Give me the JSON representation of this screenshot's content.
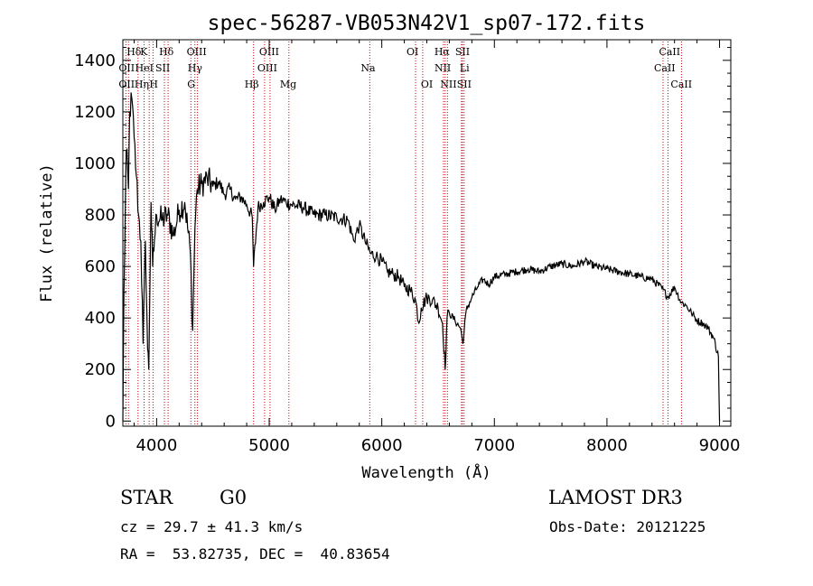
{
  "chart_data": {
    "type": "line",
    "title": "spec-56287-VB053N42V1_sp07-172.fits",
    "xlabel": "Wavelength (Å)",
    "ylabel": "Flux (relative)",
    "xlim": [
      3700,
      9100
    ],
    "ylim": [
      -20,
      1480
    ],
    "x_ticks": [
      4000,
      5000,
      6000,
      7000,
      8000,
      9000
    ],
    "y_ticks": [
      0,
      200,
      400,
      600,
      800,
      1000,
      1200,
      1400
    ],
    "grid": false,
    "series": [
      {
        "name": "flux",
        "x": [
          3700,
          3710,
          3730,
          3750,
          3760,
          3780,
          3800,
          3820,
          3840,
          3860,
          3880,
          3900,
          3920,
          3930,
          3950,
          3965,
          3980,
          4000,
          4050,
          4100,
          4150,
          4200,
          4250,
          4300,
          4320,
          4340,
          4360,
          4400,
          4450,
          4500,
          4550,
          4600,
          4650,
          4700,
          4750,
          4800,
          4850,
          4861,
          4900,
          4950,
          5000,
          5050,
          5100,
          5150,
          5200,
          5300,
          5400,
          5500,
          5600,
          5700,
          5750,
          5800,
          5850,
          5900,
          5950,
          6000,
          6050,
          6100,
          6150,
          6200,
          6250,
          6300,
          6330,
          6350,
          6400,
          6450,
          6500,
          6540,
          6563,
          6580,
          6600,
          6650,
          6700,
          6720,
          6750,
          6800,
          6850,
          6900,
          6950,
          7000,
          7100,
          7200,
          7300,
          7400,
          7500,
          7600,
          7700,
          7800,
          7900,
          8000,
          8100,
          8200,
          8300,
          8400,
          8500,
          8540,
          8600,
          8660,
          8700,
          8750,
          8800,
          8850,
          8900,
          8950,
          8990,
          9000
        ],
        "values": [
          0,
          500,
          1050,
          900,
          1200,
          1250,
          1100,
          950,
          800,
          700,
          300,
          700,
          280,
          200,
          850,
          600,
          700,
          800,
          780,
          800,
          720,
          820,
          850,
          650,
          350,
          750,
          900,
          920,
          940,
          910,
          930,
          880,
          900,
          860,
          870,
          840,
          790,
          600,
          830,
          850,
          870,
          820,
          860,
          850,
          840,
          830,
          800,
          800,
          790,
          780,
          700,
          760,
          700,
          650,
          640,
          620,
          580,
          570,
          560,
          520,
          510,
          470,
          380,
          440,
          480,
          470,
          440,
          380,
          200,
          400,
          420,
          390,
          360,
          300,
          430,
          480,
          520,
          550,
          530,
          560,
          570,
          580,
          590,
          580,
          600,
          610,
          600,
          620,
          600,
          590,
          580,
          570,
          560,
          550,
          510,
          480,
          520,
          460,
          450,
          420,
          390,
          380,
          360,
          320,
          250,
          0
        ]
      }
    ],
    "spectral_lines": [
      {
        "label": "Hδ",
        "x": 3750,
        "row": 0,
        "dx": -2
      },
      {
        "label": "K",
        "x": 3934,
        "row": 0,
        "dx": -10
      },
      {
        "label": "Hδ",
        "x": 4102,
        "row": 0,
        "dx": -10
      },
      {
        "label": "OIII",
        "x": 4363,
        "row": 0,
        "dx": -12
      },
      {
        "label": "OIII",
        "x": 5007,
        "row": 0,
        "dx": -12
      },
      {
        "label": "OI",
        "x": 6300,
        "row": 0,
        "dx": -10
      },
      {
        "label": "Hα",
        "x": 6563,
        "row": 0,
        "dx": -12
      },
      {
        "label": "SII",
        "x": 6716,
        "row": 0,
        "dx": -8
      },
      {
        "label": "CaII",
        "x": 8542,
        "row": 0,
        "dx": -10
      },
      {
        "label": "OII",
        "x": 3727,
        "row": 1,
        "dx": -8
      },
      {
        "label": "HeI",
        "x": 3889,
        "row": 1,
        "dx": -10
      },
      {
        "label": "SII",
        "x": 4069,
        "row": 1,
        "dx": -10
      },
      {
        "label": "Hγ",
        "x": 4340,
        "row": 1,
        "dx": -8
      },
      {
        "label": "OIII",
        "x": 4959,
        "row": 1,
        "dx": -8
      },
      {
        "label": "Na",
        "x": 5893,
        "row": 1,
        "dx": -10
      },
      {
        "label": "NII",
        "x": 6548,
        "row": 1,
        "dx": -10
      },
      {
        "label": "Li",
        "x": 6708,
        "row": 1,
        "dx": -2
      },
      {
        "label": "CaII",
        "x": 8498,
        "row": 1,
        "dx": -10
      },
      {
        "label": "OII",
        "x": 3727,
        "row": 2,
        "dx": -8
      },
      {
        "label": "Hη",
        "x": 3835,
        "row": 2,
        "dx": -4
      },
      {
        "label": "H",
        "x": 3968,
        "row": 2,
        "dx": -4
      },
      {
        "label": "G",
        "x": 4304,
        "row": 2,
        "dx": -4
      },
      {
        "label": "Hβ",
        "x": 4861,
        "row": 2,
        "dx": -10
      },
      {
        "label": "Mg",
        "x": 5175,
        "row": 2,
        "dx": -10
      },
      {
        "label": "OI",
        "x": 6363,
        "row": 2,
        "dx": -2
      },
      {
        "label": "NII",
        "x": 6583,
        "row": 2,
        "dx": -8
      },
      {
        "label": "SII",
        "x": 6731,
        "row": 2,
        "dx": -8
      },
      {
        "label": "CaII",
        "x": 8662,
        "row": 2,
        "dx": -12
      }
    ]
  },
  "info": {
    "class_label": "STAR",
    "subclass": "G0",
    "survey": "LAMOST DR3",
    "redshift": "cz = 29.7 ± 41.3 km/s",
    "obs_date": "Obs-Date: 20121225",
    "coords": "RA =  53.82735, DEC =  40.83654"
  },
  "colors": {
    "axis": "#000000",
    "spectrum": "#000000",
    "line_markers": "#cc0000"
  }
}
